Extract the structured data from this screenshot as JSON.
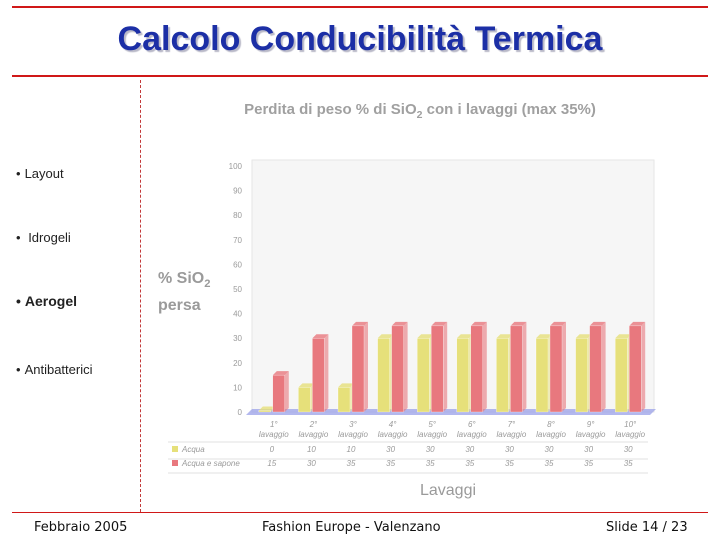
{
  "slide": {
    "title": "Calcolo Conducibilità Termica",
    "footer_left": "Febbraio 2005",
    "footer_center": "Fashion Europe - Valenzano",
    "footer_right": "Slide 14 / 23"
  },
  "sidebar": {
    "items": [
      {
        "label": "Layout"
      },
      {
        "label": "Idrogeli"
      },
      {
        "label": "Aerogel"
      },
      {
        "label": "Antibatterici"
      }
    ]
  },
  "colors": {
    "title": "#1c2fa6",
    "rule": "#d01818",
    "series_acqua": "#e6e07a",
    "series_sapone": "#e8787e",
    "floor": "#9aa0e8"
  },
  "chart_data": {
    "type": "bar",
    "title": "Perdita di peso % di SiO2 con i lavaggi (max 35%)",
    "ylabel": "% SiO2 persa",
    "xlabel": "Lavaggi",
    "ylim": [
      0,
      100
    ],
    "yticks": [
      0,
      10,
      20,
      30,
      40,
      50,
      60,
      70,
      80,
      90,
      100
    ],
    "categories": [
      "1° lavaggio",
      "2° lavaggio",
      "3° lavaggio",
      "4° lavaggio",
      "5° lavaggio",
      "6° lavaggio",
      "7° lavaggio",
      "8° lavaggio",
      "9° lavaggio",
      "10° lavaggio"
    ],
    "category_top": [
      "1°",
      "2°",
      "3°",
      "4°",
      "5°",
      "6°",
      "7°",
      "8°",
      "9°",
      "10°"
    ],
    "category_bottom": [
      "lavaggio",
      "lavaggio",
      "lavaggio",
      "lavaggio",
      "lavaggio",
      "lavaggio",
      "lavaggio",
      "lavaggio",
      "lavaggio",
      "lavaggio"
    ],
    "series": [
      {
        "name": "Acqua",
        "values": [
          0,
          10,
          10,
          30,
          30,
          30,
          30,
          30,
          30,
          30
        ]
      },
      {
        "name": "Acqua e sapone",
        "values": [
          15,
          30,
          35,
          35,
          35,
          35,
          35,
          35,
          35,
          35
        ]
      }
    ],
    "grid": false,
    "data_table": true
  }
}
